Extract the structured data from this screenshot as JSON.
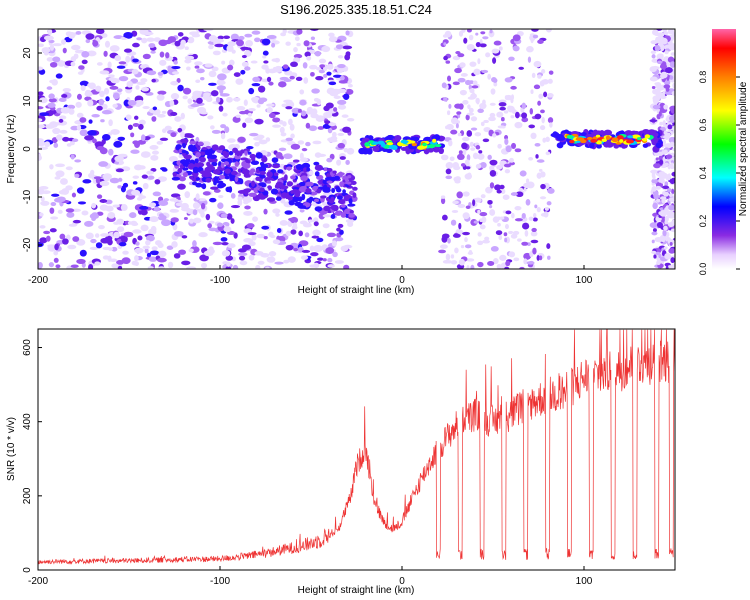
{
  "title": "S196.2025.335.18.51.C24",
  "chart_data": [
    {
      "type": "heatmap",
      "xlabel": "Height of straight line (km)",
      "ylabel": "Frequency (Hz)",
      "xlim": [
        -200,
        150
      ],
      "ylim": [
        -25,
        25
      ],
      "xticks": [
        -200,
        -100,
        0,
        100
      ],
      "yticks": [
        -20,
        -10,
        0,
        10,
        20
      ],
      "colorbar": {
        "label": "Normalized spectral amplitude",
        "range": [
          0,
          1
        ],
        "ticks": [
          "0.0",
          "0.2",
          "0.4",
          "0.6",
          "0.8"
        ]
      },
      "features": [
        {
          "name": "diffuse noise band",
          "x_range": [
            -200,
            -30
          ],
          "freq_trend": [
            0,
            -10
          ]
        },
        {
          "name": "strong tone segment 1",
          "x_range": [
            -22,
            22
          ],
          "freq": 1
        },
        {
          "name": "strong tone segment 2",
          "x_range": [
            82,
            142
          ],
          "freq": 2
        }
      ]
    },
    {
      "type": "line",
      "xlabel": "Height of straight line (km)",
      "ylabel": "SNR (10 * v/v)",
      "xlim": [
        -200,
        150
      ],
      "ylim": [
        0,
        650
      ],
      "xticks": [
        -200,
        -100,
        0,
        100
      ],
      "yticks": [
        0,
        200,
        400,
        600
      ],
      "series": [
        {
          "name": "SNR",
          "color": "#ee3333",
          "x": [
            -200,
            -175,
            -150,
            -125,
            -100,
            -85,
            -75,
            -65,
            -55,
            -45,
            -35,
            -28,
            -25,
            -20,
            -15,
            -10,
            -5,
            0,
            10,
            20,
            30,
            40,
            50,
            60,
            70,
            80,
            90,
            100,
            110,
            120,
            130,
            140,
            150
          ],
          "y": [
            22,
            24,
            25,
            28,
            30,
            38,
            45,
            55,
            65,
            80,
            110,
            200,
            280,
            330,
            180,
            130,
            110,
            130,
            240,
            330,
            390,
            420,
            400,
            420,
            450,
            470,
            480,
            520,
            530,
            540,
            560,
            560,
            570
          ],
          "dropouts_x": [
            20,
            32,
            44,
            56,
            68,
            80,
            92,
            104,
            116,
            128,
            140,
            148
          ],
          "dropout_level": 45
        }
      ]
    }
  ]
}
